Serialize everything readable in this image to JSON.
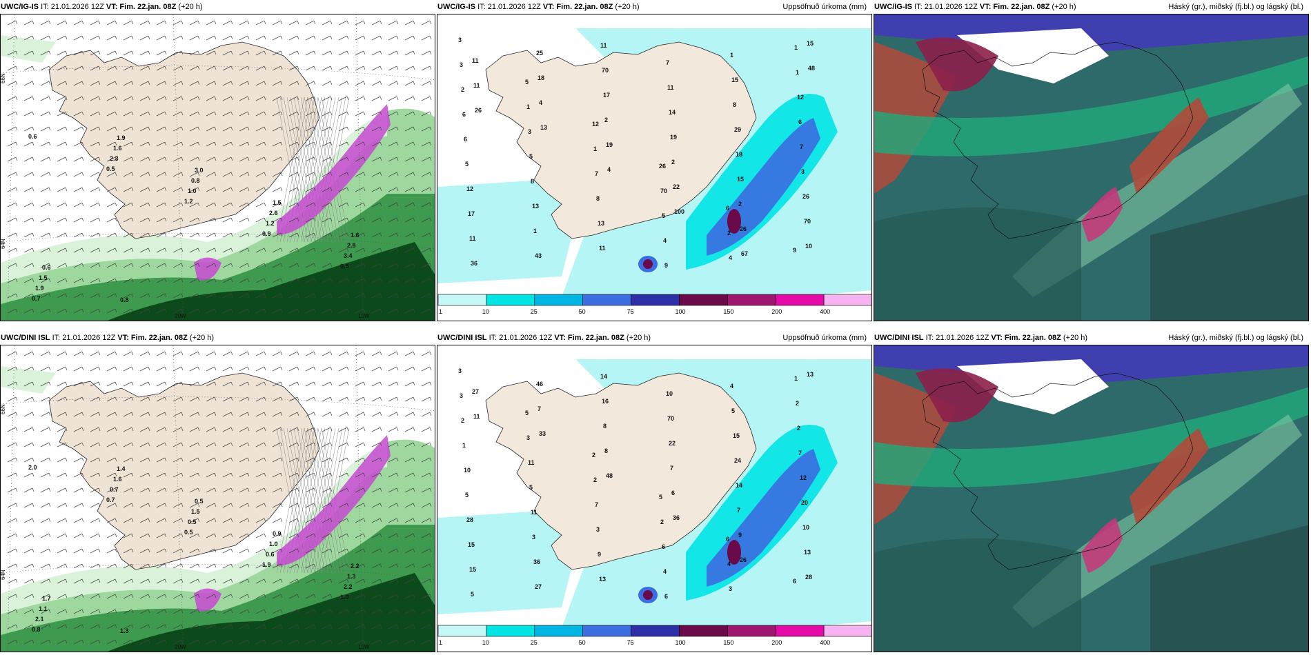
{
  "panels": [
    {
      "model": "UWC/IG-IS",
      "info_it": "IT: 21.01.2026 12Z",
      "info_vt": "VT: Fim. 22.jan. 08Z",
      "info_lead": "(+20 h)",
      "subtitle": "",
      "type": "wind"
    },
    {
      "model": "UWC/IG-IS",
      "info_it": "IT: 21.01.2026 12Z",
      "info_vt": "VT: Fim. 22.jan. 08Z",
      "info_lead": "(+20 h)",
      "subtitle": "Uppsöfnuð úrkoma (mm)",
      "type": "precip"
    },
    {
      "model": "UWC/IG-IS",
      "info_it": "IT: 21.01.2026 12Z",
      "info_vt": "VT: Fim. 22.jan. 08Z",
      "info_lead": "(+20 h)",
      "subtitle": "Háský (gr.), miðský (fj.bl.) og lágský (bl.)",
      "type": "cloud"
    },
    {
      "model": "UWC/DINI ISL",
      "info_it": "IT: 21.01.2026 12Z",
      "info_vt": "VT: Fim. 22.jan. 08Z",
      "info_lead": "(+20 h)",
      "subtitle": "",
      "type": "wind"
    },
    {
      "model": "UWC/DINI ISL",
      "info_it": "IT: 21.01.2026 12Z",
      "info_vt": "VT: Fim. 22.jan. 08Z",
      "info_lead": "(+20 h)",
      "subtitle": "Uppsöfnuð úrkoma (mm)",
      "type": "precip"
    },
    {
      "model": "UWC/DINI ISL",
      "info_it": "IT: 21.01.2026 12Z",
      "info_vt": "VT: Fim. 22.jan. 08Z",
      "info_lead": "(+20 h)",
      "subtitle": "Háský (gr.), miðský (fj.bl.) og lágský (bl.)",
      "type": "cloud"
    }
  ],
  "axis_labels": {
    "lat66": "66N",
    "lat64": "64N",
    "lon20": "20W",
    "lon15": "15W"
  },
  "legend": {
    "ticks": [
      "1",
      "10",
      "25",
      "50",
      "75",
      "100",
      "150",
      "200",
      "400"
    ],
    "colors": [
      "#c6f7f7",
      "#00e4e4",
      "#00b4e4",
      "#3b6ee0",
      "#2c2fa8",
      "#6a0a4a",
      "#a0166e",
      "#e40aa8",
      "#f5b4f0"
    ]
  },
  "wind_labels_top": [
    "0.6",
    "0.5",
    "1.2",
    "0.9",
    "0.5",
    "0.7",
    "2.3",
    "1.0",
    "1.2",
    "3.4",
    "1.9",
    "1.6",
    "0.8",
    "2.6",
    "2.8",
    "1.5",
    "1.9",
    "3.0",
    "1.5",
    "1.6",
    "0.6",
    "0.8"
  ],
  "wind_labels_bottom": [
    "2.0",
    "0.7",
    "0.5",
    "1.9",
    "1.0",
    "0.8",
    "0.7",
    "0.5",
    "0.6",
    "2.2",
    "2.1",
    "1.6",
    "1.5",
    "1.0",
    "1.3",
    "1.1",
    "1.4",
    "0.5",
    "0.9",
    "2.2",
    "1.7",
    "1.3"
  ],
  "precip_labels_top": [
    "3",
    "5",
    "12",
    "26",
    "6",
    "9",
    "3",
    "1",
    "1",
    "70",
    "2",
    "1",
    "2",
    "3",
    "7",
    "5",
    "4",
    "1",
    "6",
    "5",
    "8",
    "4",
    "1",
    "12",
    "6",
    "8",
    "13",
    "9",
    "15",
    "6",
    "5",
    "13",
    "11",
    "7",
    "8",
    "7",
    "12",
    "1",
    "11",
    "11",
    "29",
    "3",
    "17",
    "43",
    "70",
    "14",
    "18",
    "26",
    "11",
    "25",
    "17",
    "19",
    "15",
    "70",
    "36",
    "18",
    "2",
    "2",
    "2",
    "10",
    "11",
    "4",
    "19",
    "22",
    "26",
    "15",
    "11",
    "13",
    "4",
    "100",
    "67",
    "48",
    "26"
  ],
  "precip_labels_bottom": [
    "3",
    "5",
    "2",
    "5",
    "6",
    "6",
    "3",
    "3",
    "2",
    "2",
    "4",
    "1",
    "2",
    "11",
    "7",
    "6",
    "3",
    "2",
    "1",
    "5",
    "3",
    "4",
    "4",
    "2",
    "10",
    "11",
    "9",
    "6",
    "5",
    "7",
    "5",
    "3",
    "13",
    "10",
    "15",
    "12",
    "28",
    "36",
    "14",
    "70",
    "24",
    "20",
    "15",
    "27",
    "16",
    "22",
    "14",
    "10",
    "15",
    "46",
    "8",
    "7",
    "7",
    "13",
    "5",
    "7",
    "8",
    "6",
    "9",
    "28",
    "27",
    "33",
    "48",
    "36",
    "26",
    "13",
    "11"
  ]
}
